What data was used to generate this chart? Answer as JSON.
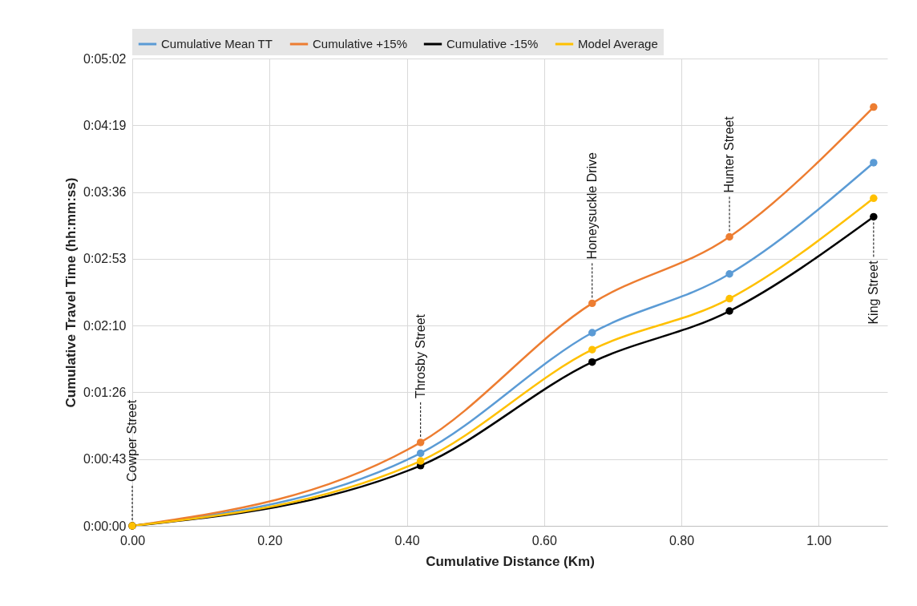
{
  "chart_data": {
    "type": "line",
    "xlabel": "Cumulative Distance (Km)",
    "ylabel": "Cumulative Travel Time  (hh:mm:ss)",
    "x": [
      0,
      0.42,
      0.67,
      0.87,
      1.08
    ],
    "series": [
      {
        "name": "Cumulative Mean TT",
        "color": "#5b9bd5",
        "values": [
          0,
          47,
          125,
          163,
          235
        ]
      },
      {
        "name": "Cumulative +15%",
        "color": "#ed7d31",
        "values": [
          0,
          54,
          144,
          187,
          271
        ]
      },
      {
        "name": "Cumulative -15%",
        "color": "#000000",
        "values": [
          0,
          39,
          106,
          139,
          200
        ]
      },
      {
        "name": "Model Average",
        "color": "#ffc000",
        "values": [
          0,
          42,
          114,
          147,
          212
        ]
      }
    ],
    "xlim": [
      0,
      1.1
    ],
    "xticks": [
      {
        "value": 0,
        "label": "0.00"
      },
      {
        "value": 0.2,
        "label": "0.20"
      },
      {
        "value": 0.4,
        "label": "0.40"
      },
      {
        "value": 0.6,
        "label": "0.60"
      },
      {
        "value": 0.8,
        "label": "0.80"
      },
      {
        "value": 1,
        "label": "1.00"
      }
    ],
    "ylim": [
      0,
      302.4
    ],
    "yticks": [
      {
        "value": 0,
        "label": "0:00:00"
      },
      {
        "value": 43.2,
        "label": "0:00:43"
      },
      {
        "value": 86.4,
        "label": "0:01:26"
      },
      {
        "value": 129.6,
        "label": "0:02:10"
      },
      {
        "value": 172.8,
        "label": "0:02:53"
      },
      {
        "value": 216,
        "label": "0:03:36"
      },
      {
        "value": 259.2,
        "label": "0:04:19"
      },
      {
        "value": 302.4,
        "label": "0:05:02"
      }
    ],
    "annotations": [
      {
        "text": "Cowper Street",
        "x": 0,
        "y": 0
      },
      {
        "text": "Throsby Street",
        "x": 0.42,
        "y": 54
      },
      {
        "text": "Honeysuckle Drive",
        "x": 0.67,
        "y": 144
      },
      {
        "text": "Hunter Street",
        "x": 0.87,
        "y": 187
      },
      {
        "text": "King Street",
        "x": 1.08,
        "y": 200
      }
    ],
    "grid": true,
    "legend": "top",
    "marker": "circle",
    "line_style": "solid"
  }
}
